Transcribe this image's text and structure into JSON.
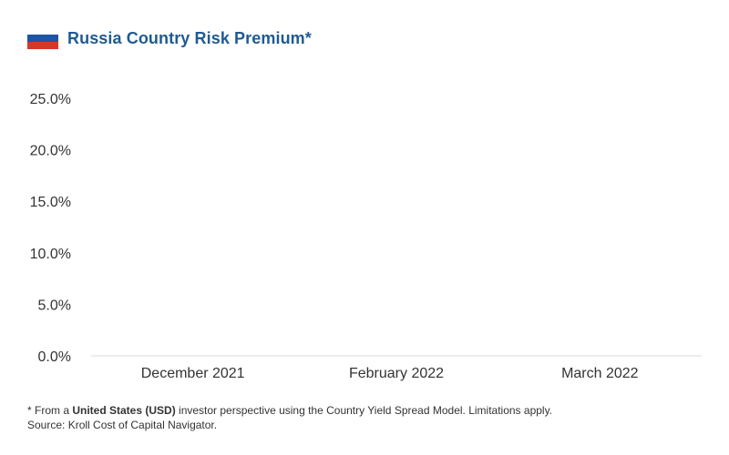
{
  "header": {
    "flag_icon": "russia-flag-icon",
    "flag_colors": [
      "#ffffff",
      "#1d55a5",
      "#d9362b"
    ],
    "title": "Russia Country Risk Premium*"
  },
  "chart_data": {
    "type": "bar",
    "title": "Russia Country Risk Premium*",
    "xlabel": "",
    "ylabel": "",
    "categories": [
      "December 2021",
      "February 2022",
      "March 2022"
    ],
    "values": [
      null,
      null,
      null
    ],
    "ylim": [
      0,
      25
    ],
    "yticks": [
      "0.0%",
      "5.0%",
      "10.0%",
      "15.0%",
      "20.0%",
      "25.0%"
    ],
    "grid": false,
    "legend": "none"
  },
  "footnote": {
    "line1_prefix": "* From a ",
    "line1_bold": "United States (USD)",
    "line1_suffix": " investor perspective using the Country Yield Spread Model. Limitations apply.",
    "line2": "Source: Kroll Cost of Capital Navigator."
  },
  "colors": {
    "title": "#1f5a93",
    "axis_line": "#d9d9d9",
    "text": "#333333"
  }
}
